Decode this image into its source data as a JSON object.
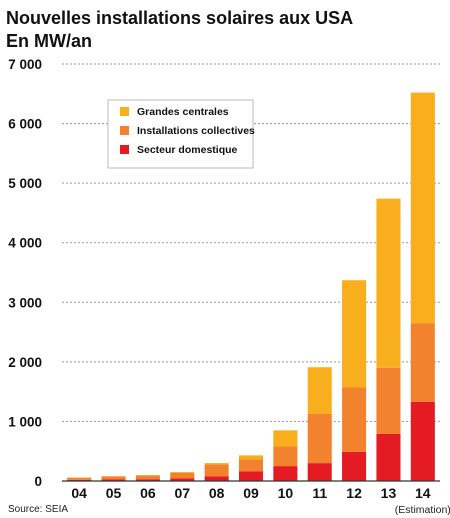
{
  "title": "Nouvelles installations solaires aux USA",
  "subtitle": "En MW/an",
  "source": "Source: SEIA",
  "colors": {
    "grandes": "#f8ae1d",
    "collectives": "#f2822e",
    "domestique": "#e41b23"
  },
  "chart_data": {
    "type": "bar",
    "stacked": true,
    "categories": [
      "04",
      "05",
      "06",
      "07",
      "08",
      "09",
      "10",
      "11",
      "12",
      "13",
      "14"
    ],
    "category_note": {
      "category": "14",
      "text": "(Estimation)"
    },
    "series": [
      {
        "name": "Secteur domestique",
        "color": "#e41b23",
        "values": [
          20,
          25,
          30,
          45,
          80,
          160,
          250,
          300,
          490,
          790,
          1330
        ]
      },
      {
        "name": "Installations collectives",
        "color": "#f2822e",
        "values": [
          35,
          50,
          60,
          90,
          200,
          200,
          330,
          830,
          1080,
          1110,
          1320
        ]
      },
      {
        "name": "Grandes centrales",
        "color": "#f8ae1d",
        "values": [
          5,
          5,
          10,
          15,
          20,
          70,
          270,
          780,
          1800,
          2840,
          3870
        ]
      }
    ],
    "legend_order": [
      "Grandes centrales",
      "Installations collectives",
      "Secteur domestique"
    ],
    "yticks": [
      "0",
      "1 000",
      "2 000",
      "3 000",
      "4 000",
      "5 000",
      "6 000",
      "7 000"
    ],
    "ylim": [
      0,
      7000
    ],
    "grid": true,
    "legend_position": "top-left"
  }
}
